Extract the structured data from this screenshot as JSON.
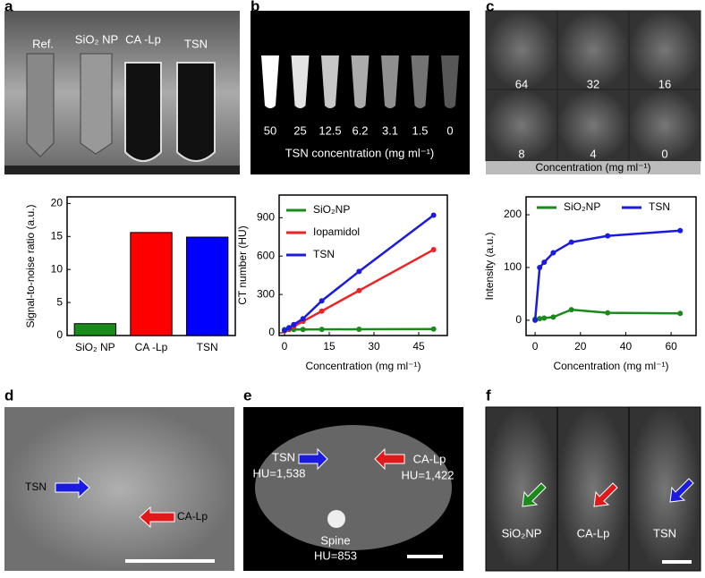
{
  "panels": {
    "a": {
      "letter": "a",
      "labels": [
        "Ref.",
        "SiO₂ NP",
        "CA -Lp",
        "TSN"
      ]
    },
    "b": {
      "letter": "b",
      "labels": [
        "50",
        "25",
        "12.5",
        "6.2",
        "3.1",
        "1.5",
        "0"
      ],
      "caption": "TSN concentration (mg ml⁻¹)"
    },
    "c": {
      "letter": "c",
      "labels": [
        "64",
        "32",
        "16",
        "8",
        "4",
        "0"
      ],
      "caption": "Concentration (mg ml⁻¹)"
    },
    "d": {
      "letter": "d",
      "labels": [
        "TSN",
        "CA-Lp"
      ]
    },
    "e": {
      "letter": "e",
      "labels": [
        "TSN",
        "HU=1,538",
        "CA-Lp",
        "HU=1,422",
        "Spine",
        "HU=853"
      ]
    },
    "f": {
      "letter": "f",
      "labels": [
        "SiO₂NP",
        "CA-Lp",
        "TSN"
      ]
    }
  },
  "chart_data": [
    {
      "type": "bar",
      "ylabel": "Signal-to-noise ratio (a.u.)",
      "categories": [
        "SiO₂ NP",
        "CA -Lp",
        "TSN"
      ],
      "values": [
        1.8,
        15.6,
        14.9
      ],
      "colors": [
        "#1a8a1a",
        "#ff0000",
        "#0000ff"
      ],
      "ylim": [
        0,
        21
      ],
      "yticks": [
        0,
        5,
        10,
        15,
        20
      ]
    },
    {
      "type": "line",
      "xlabel": "Concentration (mg ml⁻¹)",
      "ylabel": "CT number (HU)",
      "x": [
        0,
        1.5,
        3.1,
        6.2,
        12.5,
        25,
        50
      ],
      "series": [
        {
          "name": "SiO₂NP",
          "color": "#1a8a1a",
          "values": [
            25,
            25,
            26,
            26,
            27,
            28,
            30
          ]
        },
        {
          "name": "Iopamidol",
          "color": "#ee2222",
          "values": [
            15,
            30,
            50,
            90,
            170,
            330,
            650
          ]
        },
        {
          "name": "TSN",
          "color": "#1a1ae0",
          "values": [
            20,
            40,
            65,
            110,
            250,
            480,
            920
          ]
        }
      ],
      "xlim": [
        -1.8,
        54.6
      ],
      "xticks": [
        0,
        15,
        30,
        45
      ],
      "ylim": [
        -21,
        1077
      ],
      "yticks": [
        0,
        300,
        600,
        900
      ],
      "legend": "upper left"
    },
    {
      "type": "line",
      "xlabel": "Concentration (mg ml⁻¹)",
      "ylabel": "Intensity (a.u.)",
      "x": [
        0,
        2,
        4,
        8,
        16,
        32,
        64
      ],
      "series": [
        {
          "name": "SiO₂NP",
          "color": "#1a8a1a",
          "values": [
            2,
            3,
            4,
            6,
            20,
            14,
            13
          ]
        },
        {
          "name": "TSN",
          "color": "#1a1ae0",
          "values": [
            0,
            100,
            110,
            128,
            148,
            160,
            170
          ]
        }
      ],
      "xlim": [
        -4,
        71
      ],
      "xticks": [
        0,
        20,
        40,
        60
      ],
      "ylim": [
        -29,
        234
      ],
      "yticks": [
        0,
        100,
        200
      ],
      "legend": "top"
    }
  ]
}
